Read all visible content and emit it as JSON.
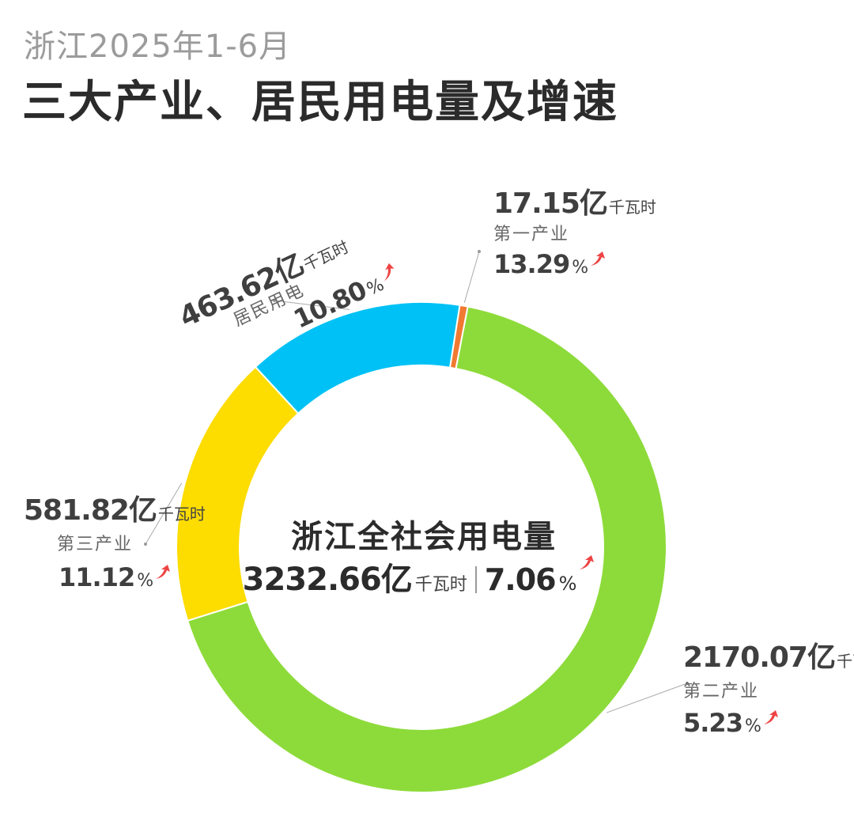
{
  "header": {
    "subtitle": "浙江2025年1-6月",
    "title": "三大产业、居民用电量及增速"
  },
  "center": {
    "title": "浙江全社会用电量",
    "value": "3232.66亿",
    "unit": "千瓦时",
    "growth": "7.06",
    "percent_sign": "%"
  },
  "chart_data": {
    "type": "donut",
    "unit": "亿千瓦时",
    "slices": [
      {
        "name": "第一产业",
        "value": 17.15,
        "value_label": "17.15亿",
        "unit_label": "千瓦时",
        "growth": "13.29",
        "growth_sign": "%",
        "color": "#f07a32"
      },
      {
        "name": "第二产业",
        "value": 2170.07,
        "value_label": "2170.07亿",
        "unit_label": "千瓦时",
        "growth": "5.23",
        "growth_sign": "%",
        "color": "#8ddb3a"
      },
      {
        "name": "第三产业",
        "value": 581.82,
        "value_label": "581.82亿",
        "unit_label": "千瓦时",
        "growth": "11.12",
        "growth_sign": "%",
        "color": "#fddc00"
      },
      {
        "name": "居民用电",
        "value": 463.62,
        "value_label": "463.62亿",
        "unit_label": "千瓦时",
        "growth": "10.80",
        "growth_sign": "%",
        "color": "#00c1f5"
      }
    ],
    "total": 3232.66,
    "growth_arrow_color": "#ee4444"
  }
}
